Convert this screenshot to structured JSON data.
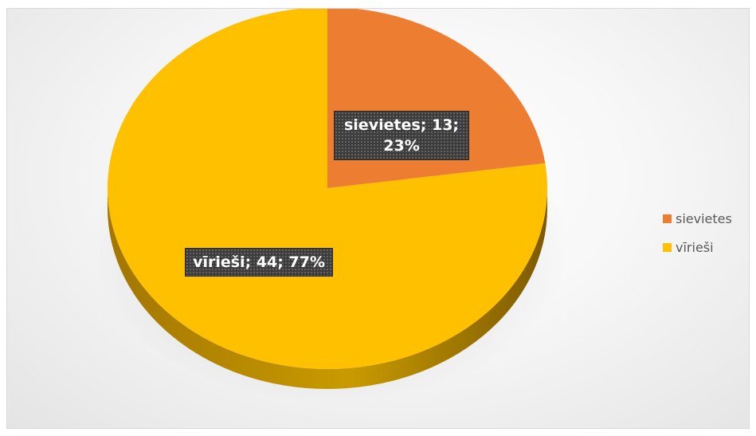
{
  "chart_data": {
    "type": "pie",
    "style": "3d",
    "categories": [
      "sievietes",
      "vīrieši"
    ],
    "values": [
      13,
      44
    ],
    "percentages": [
      23,
      77
    ],
    "data_labels": [
      "sievietes; 13; 23%",
      "vīrieši; 44; 77%"
    ],
    "colors": [
      "#ED7D31",
      "#FFC000"
    ],
    "legend": {
      "position": "right",
      "entries": [
        "sievietes",
        "vīrieši"
      ]
    }
  }
}
